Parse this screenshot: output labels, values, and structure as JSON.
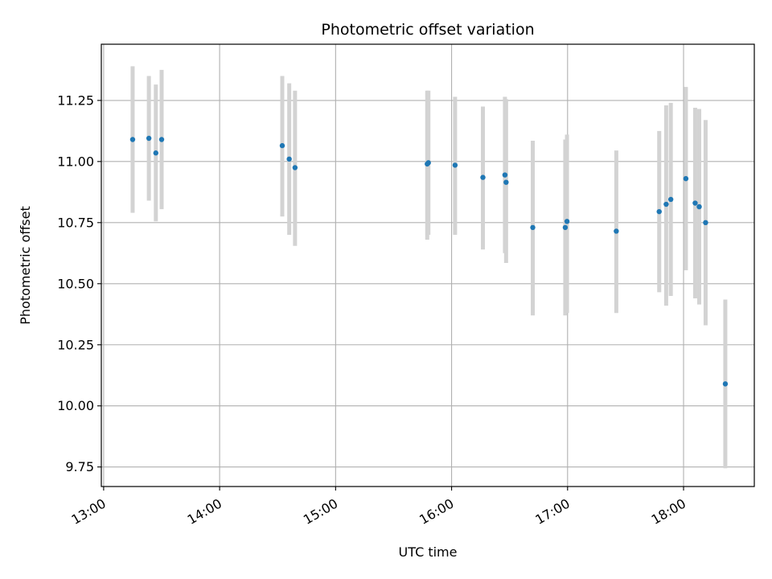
{
  "chart_data": {
    "type": "scatter",
    "title": "Photometric offset variation",
    "xlabel": "UTC time",
    "ylabel": "Photometric offset",
    "x_unit": "hour",
    "xlim": [
      12.98,
      18.61
    ],
    "ylim": [
      9.67,
      11.48
    ],
    "grid": true,
    "xticks": [
      {
        "value": 13,
        "label": "13:00"
      },
      {
        "value": 14,
        "label": "14:00"
      },
      {
        "value": 15,
        "label": "15:00"
      },
      {
        "value": 16,
        "label": "16:00"
      },
      {
        "value": 17,
        "label": "17:00"
      },
      {
        "value": 18,
        "label": "18:00"
      }
    ],
    "yticks": [
      {
        "value": 9.75,
        "label": "9.75"
      },
      {
        "value": 10.0,
        "label": "10.00"
      },
      {
        "value": 10.25,
        "label": "10.25"
      },
      {
        "value": 10.5,
        "label": "10.50"
      },
      {
        "value": 10.75,
        "label": "10.75"
      },
      {
        "value": 11.0,
        "label": "11.00"
      },
      {
        "value": 11.25,
        "label": "11.25"
      }
    ],
    "colors": {
      "point": "#1f77b4",
      "errorbar": "#d3d3d3",
      "grid": "#b0b0b0"
    },
    "points": [
      {
        "x": 13.25,
        "y": 11.09,
        "lo": 10.79,
        "hi": 11.39
      },
      {
        "x": 13.39,
        "y": 11.095,
        "lo": 10.84,
        "hi": 11.35
      },
      {
        "x": 13.45,
        "y": 11.035,
        "lo": 10.755,
        "hi": 11.315
      },
      {
        "x": 13.5,
        "y": 11.09,
        "lo": 10.805,
        "hi": 11.375
      },
      {
        "x": 14.54,
        "y": 11.065,
        "lo": 10.775,
        "hi": 11.35
      },
      {
        "x": 14.6,
        "y": 11.01,
        "lo": 10.7,
        "hi": 11.32
      },
      {
        "x": 14.65,
        "y": 10.975,
        "lo": 10.655,
        "hi": 11.29
      },
      {
        "x": 15.79,
        "y": 10.99,
        "lo": 10.68,
        "hi": 11.29
      },
      {
        "x": 15.8,
        "y": 10.995,
        "lo": 10.7,
        "hi": 11.29
      },
      {
        "x": 16.03,
        "y": 10.985,
        "lo": 10.7,
        "hi": 11.265
      },
      {
        "x": 16.27,
        "y": 10.935,
        "lo": 10.64,
        "hi": 11.225
      },
      {
        "x": 16.46,
        "y": 10.945,
        "lo": 10.625,
        "hi": 11.265
      },
      {
        "x": 16.47,
        "y": 10.915,
        "lo": 10.585,
        "hi": 11.255
      },
      {
        "x": 16.7,
        "y": 10.73,
        "lo": 10.37,
        "hi": 11.085
      },
      {
        "x": 16.98,
        "y": 10.73,
        "lo": 10.37,
        "hi": 11.09
      },
      {
        "x": 16.995,
        "y": 10.755,
        "lo": 10.38,
        "hi": 11.11
      },
      {
        "x": 17.42,
        "y": 10.715,
        "lo": 10.38,
        "hi": 11.045
      },
      {
        "x": 17.79,
        "y": 10.795,
        "lo": 10.465,
        "hi": 11.125
      },
      {
        "x": 17.85,
        "y": 10.825,
        "lo": 10.41,
        "hi": 11.23
      },
      {
        "x": 17.89,
        "y": 10.845,
        "lo": 10.45,
        "hi": 11.24
      },
      {
        "x": 18.02,
        "y": 10.93,
        "lo": 10.555,
        "hi": 11.305
      },
      {
        "x": 18.1,
        "y": 10.83,
        "lo": 10.44,
        "hi": 11.22
      },
      {
        "x": 18.135,
        "y": 10.815,
        "lo": 10.415,
        "hi": 11.215
      },
      {
        "x": 18.19,
        "y": 10.75,
        "lo": 10.33,
        "hi": 11.17
      },
      {
        "x": 18.36,
        "y": 10.09,
        "lo": 9.745,
        "hi": 10.435
      }
    ]
  }
}
